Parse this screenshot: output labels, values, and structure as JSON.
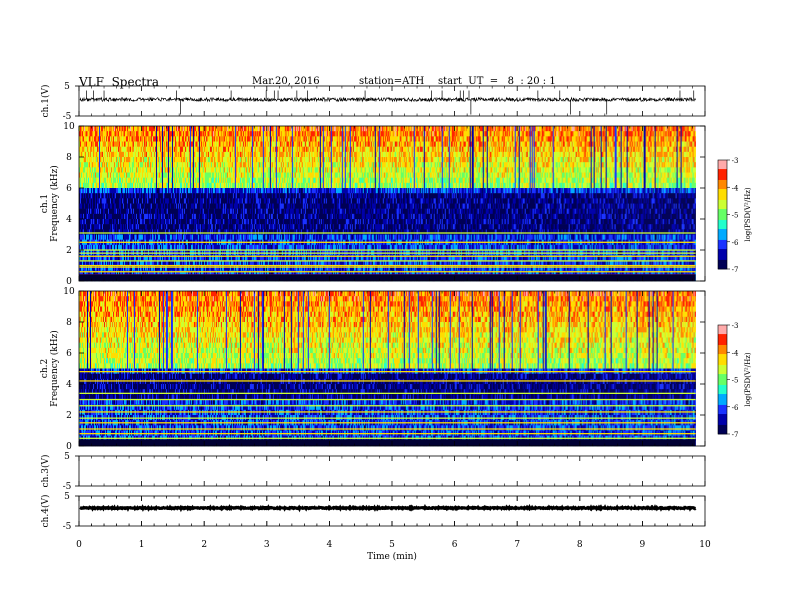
{
  "header": {
    "title": "VLF  Spectra",
    "date": "Mar.20, 2016",
    "station": "station=ATH",
    "start": "start  UT  =   8  : 20 : 1"
  },
  "chart_data": {
    "type": "heatmap",
    "x_axis": {
      "label": "Time  (min)",
      "range": [
        0,
        10
      ],
      "ticks": [
        0,
        1,
        2,
        3,
        4,
        5,
        6,
        7,
        8,
        9,
        10
      ],
      "data_end": 9.85
    },
    "panels": [
      {
        "kind": "timeseries",
        "ylabel": "ch.1(V)",
        "ylim": [
          -5,
          5
        ],
        "tick_labels": [
          "5",
          "-5"
        ],
        "baseline": 0.5,
        "noise_amplitude": 0.6,
        "spikes": [
          0.12,
          0.23,
          0.4,
          1.56,
          1.62,
          2.43,
          2.99,
          3.12,
          3.18,
          3.48,
          3.65,
          4.57,
          5.63,
          5.8,
          6.09,
          6.14,
          6.23,
          6.26,
          7.33,
          7.68,
          7.85,
          8.43,
          9.6,
          9.82
        ]
      },
      {
        "kind": "spectrogram",
        "ylabel": "ch.1\nFrequency  (kHz)",
        "ylim": [
          0,
          10
        ],
        "yticks": [
          0,
          2,
          4,
          6,
          8,
          10
        ],
        "colorbar": {
          "label": "log(PSD(V²/Hz)",
          "range": [
            -7,
            -3
          ],
          "ticks": [
            -3,
            -4,
            -5,
            -6,
            -7
          ]
        },
        "hf_boundary_khz": 6.2,
        "dark_band_khz": [
          3.2,
          5.8
        ],
        "lines_khz": [
          0.2,
          0.4,
          0.6,
          0.9,
          1.0,
          1.3,
          1.6,
          1.8,
          2.0,
          2.5,
          3.1
        ]
      },
      {
        "kind": "spectrogram",
        "ylabel": "ch.2\nFrequency  (kHz)",
        "ylim": [
          0,
          10
        ],
        "yticks": [
          0,
          2,
          4,
          6,
          8,
          10
        ],
        "colorbar": {
          "label": "log(PSD(V²/Hz)",
          "range": [
            -7,
            -3
          ],
          "ticks": [
            -3,
            -4,
            -5,
            -6,
            -7
          ]
        },
        "hf_boundary_khz": 5.0,
        "dark_band_khz": [
          3.0,
          4.8
        ],
        "lines_khz": [
          0.2,
          0.5,
          0.8,
          1.1,
          1.5,
          1.8,
          2.2,
          2.6,
          3.0,
          3.4,
          4.2,
          4.8
        ]
      },
      {
        "kind": "timeseries",
        "ylabel": "ch.3(V)",
        "ylim": [
          -5,
          5
        ],
        "tick_labels": [
          "5",
          "-5"
        ],
        "empty": true
      },
      {
        "kind": "timeseries",
        "ylabel": "ch.4(V)",
        "ylim": [
          -5,
          5
        ],
        "tick_labels": [
          "5",
          "-5"
        ],
        "baseline": 1.0,
        "noise_amplitude": 0.2
      }
    ]
  },
  "colors": {
    "frame": "#000000",
    "trace": "#000000",
    "colormap": [
      "#000055",
      "#0000aa",
      "#1a33ff",
      "#00aaff",
      "#22ffcc",
      "#66ff66",
      "#ccff33",
      "#ffdd00",
      "#ff8800",
      "#ff2200",
      "#ffaaaa"
    ]
  }
}
